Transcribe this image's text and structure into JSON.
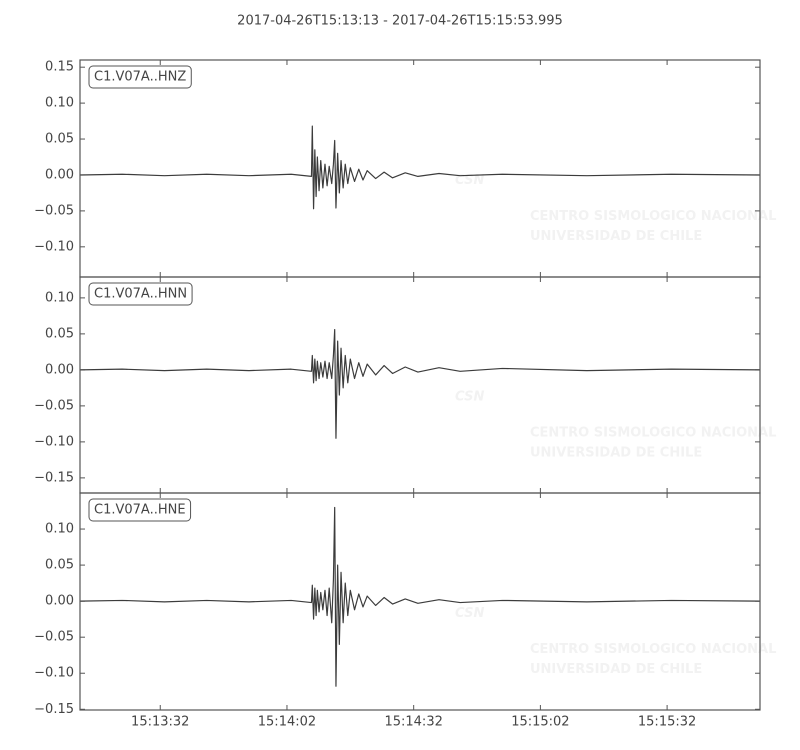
{
  "chart_data": [
    {
      "type": "line",
      "title": "2017-04-26T15:13:13  -  2017-04-26T15:15:53.995",
      "watermark": [
        "CSN",
        "CENTRO SISMOLOGICO NACIONAL",
        "UNIVERSIDAD DE CHILE"
      ],
      "x": [
        0,
        10,
        20,
        30,
        40,
        50,
        54.8,
        55.0,
        55.3,
        55.6,
        55.9,
        56.2,
        56.6,
        57.0,
        57.5,
        58.0,
        58.5,
        59.0,
        59.6,
        60.0,
        60.3,
        60.6,
        61.0,
        61.4,
        61.8,
        62.3,
        62.8,
        63.4,
        64.0,
        65,
        66,
        67,
        68,
        70,
        72,
        74,
        77,
        80,
        85,
        90,
        100,
        120,
        140,
        161
      ],
      "series": [
        {
          "name": "C1.V07A..HNZ",
          "color": "#3c3c3c",
          "values": [
            0,
            0.001,
            -0.001,
            0.001,
            -0.001,
            0.001,
            -0.002,
            0.068,
            -0.047,
            0.035,
            -0.03,
            0.025,
            -0.022,
            0.02,
            -0.018,
            0.015,
            -0.015,
            0.012,
            -0.012,
            0.015,
            0.048,
            -0.046,
            0.03,
            -0.025,
            0.02,
            -0.018,
            0.015,
            -0.012,
            0.01,
            -0.009,
            0.008,
            -0.007,
            0.006,
            -0.005,
            0.004,
            -0.004,
            0.003,
            -0.002,
            0.002,
            -0.001,
            0.001,
            -0.001,
            0.001,
            0
          ]
        }
      ],
      "xlim": [
        0,
        160.995
      ],
      "xticks": [
        19,
        49,
        79,
        109,
        139
      ],
      "ylim": [
        -0.142,
        0.16
      ],
      "yticks": [
        {
          "value": -0.1,
          "label": "−0.10"
        },
        {
          "value": -0.05,
          "label": "−0.05"
        },
        {
          "value": 0,
          "label": "0.00"
        },
        0.05,
        {
          "value": 0.1,
          "label": "0.10"
        },
        0.15
      ]
    },
    {
      "type": "line",
      "watermark": [
        "CSN",
        "CENTRO SISMOLOGICO NACIONAL",
        "UNIVERSIDAD DE CHILE"
      ],
      "x": [
        0,
        10,
        20,
        30,
        40,
        50,
        54.8,
        55.0,
        55.3,
        55.6,
        55.9,
        56.2,
        56.6,
        57.0,
        57.5,
        58.0,
        58.5,
        59.0,
        59.6,
        60.0,
        60.3,
        60.6,
        61.0,
        61.4,
        61.8,
        62.3,
        62.8,
        63.4,
        64.0,
        65,
        66,
        67,
        68,
        70,
        72,
        74,
        77,
        80,
        85,
        90,
        100,
        120,
        140,
        161
      ],
      "series": [
        {
          "name": "C1.V07A..HNN",
          "color": "#3c3c3c",
          "values": [
            0,
            0.001,
            -0.001,
            0.001,
            -0.001,
            0.001,
            -0.002,
            0.02,
            -0.018,
            0.015,
            -0.015,
            0.012,
            -0.012,
            0.01,
            -0.01,
            0.012,
            -0.012,
            0.01,
            -0.012,
            0.02,
            0.056,
            -0.095,
            0.04,
            -0.035,
            0.03,
            -0.025,
            0.02,
            -0.018,
            0.015,
            -0.012,
            0.01,
            -0.009,
            0.008,
            -0.007,
            0.006,
            -0.005,
            0.004,
            -0.003,
            0.003,
            -0.002,
            0.002,
            -0.001,
            0.001,
            0
          ]
        }
      ],
      "xlim": [
        0,
        160.995
      ],
      "xticks": [
        19,
        49,
        79,
        109,
        139
      ],
      "ylim": [
        -0.171,
        0.129
      ],
      "yticks": [
        {
          "value": -0.15,
          "label": "−0.15"
        },
        {
          "value": -0.1,
          "label": "−0.10"
        },
        {
          "value": -0.05,
          "label": "−0.05"
        },
        {
          "value": 0,
          "label": "0.00"
        },
        0.05,
        {
          "value": 0.1,
          "label": "0.10"
        }
      ]
    },
    {
      "type": "line",
      "watermark": [
        "CSN",
        "CENTRO SISMOLOGICO NACIONAL",
        "UNIVERSIDAD DE CHILE"
      ],
      "x": [
        0,
        10,
        20,
        30,
        40,
        50,
        54.8,
        55.0,
        55.3,
        55.6,
        55.9,
        56.2,
        56.6,
        57.0,
        57.5,
        58.0,
        58.5,
        59.0,
        59.6,
        60.0,
        60.3,
        60.6,
        61.0,
        61.4,
        61.8,
        62.3,
        62.8,
        63.4,
        64.0,
        65,
        66,
        67,
        68,
        70,
        72,
        74,
        77,
        80,
        85,
        90,
        100,
        120,
        140,
        161
      ],
      "series": [
        {
          "name": "C1.V07A..HNE",
          "color": "#3c3c3c",
          "values": [
            0,
            0.001,
            -0.001,
            0.001,
            -0.001,
            0.001,
            -0.002,
            0.022,
            -0.025,
            0.018,
            -0.02,
            0.015,
            -0.015,
            0.012,
            -0.012,
            0.015,
            -0.02,
            0.018,
            -0.03,
            0.03,
            0.13,
            -0.118,
            0.05,
            -0.06,
            0.04,
            -0.03,
            0.025,
            -0.02,
            0.015,
            -0.012,
            0.01,
            -0.008,
            0.007,
            -0.006,
            0.005,
            -0.004,
            0.003,
            -0.003,
            0.002,
            -0.002,
            0.001,
            -0.001,
            0.001,
            0
          ]
        }
      ],
      "xlim": [
        0,
        160.995
      ],
      "xticks": [
        {
          "value": 19,
          "label": "15:13:32"
        },
        {
          "value": 49,
          "label": "15:14:02"
        },
        {
          "value": 79,
          "label": "15:14:32"
        },
        {
          "value": 109,
          "label": "15:15:02"
        },
        {
          "value": 139,
          "label": "15:15:32"
        }
      ],
      "ylim": [
        -0.151,
        0.15
      ],
      "yticks": [
        {
          "value": -0.15,
          "label": "−0.15"
        },
        {
          "value": -0.1,
          "label": "−0.10"
        },
        {
          "value": -0.05,
          "label": "−0.05"
        },
        {
          "value": 0,
          "label": "0.00"
        },
        0.05,
        {
          "value": 0.1,
          "label": "0.10"
        }
      ]
    }
  ]
}
